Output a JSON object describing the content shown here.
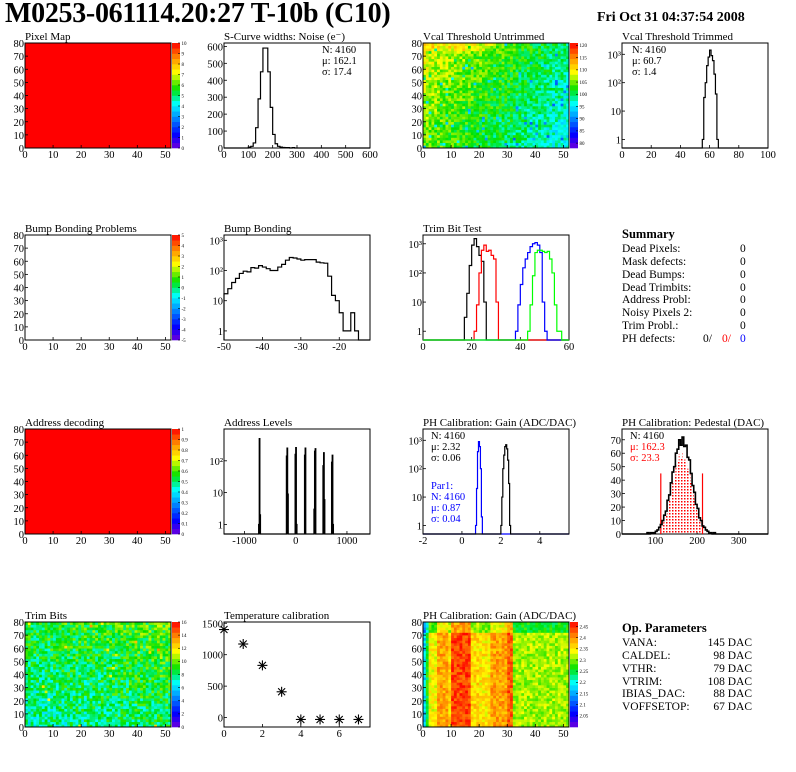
{
  "header": {
    "title": "M0253-061114.20:27 T-10b (C10)",
    "date": "Fri Oct 31 04:37:54 2008"
  },
  "summary": {
    "title": "Summary",
    "rows": [
      {
        "label": "Dead Pixels:",
        "value": "0"
      },
      {
        "label": "Mask defects:",
        "value": "0"
      },
      {
        "label": "Dead Bumps:",
        "value": "0"
      },
      {
        "label": "Dead Trimbits:",
        "value": "0"
      },
      {
        "label": "Address Probl:",
        "value": "0"
      },
      {
        "label": "Noisy Pixels 2:",
        "value": "0"
      },
      {
        "label": "Trim Probl.:",
        "value": "0"
      }
    ],
    "ph_defects": {
      "label": "PH defects:",
      "values": [
        "0/",
        "0/",
        "0"
      ],
      "colors": [
        "#000000",
        "#ff0000",
        "#0000ff"
      ]
    }
  },
  "op_parameters": {
    "title": "Op. Parameters",
    "rows": [
      {
        "label": "VANA:",
        "value": "145 DAC"
      },
      {
        "label": "CALDEL:",
        "value": "98 DAC"
      },
      {
        "label": "VTHR:",
        "value": "79 DAC"
      },
      {
        "label": "VTRIM:",
        "value": "108 DAC"
      },
      {
        "label": "IBIAS_DAC:",
        "value": "88 DAC"
      },
      {
        "label": "VOFFSETOP:",
        "value": "67 DAC"
      }
    ]
  },
  "chart_data": [
    {
      "type": "heatmap",
      "title": "Pixel Map",
      "xlim": [
        0,
        52
      ],
      "ylim": [
        0,
        80
      ],
      "xticks": [
        0,
        10,
        20,
        30,
        40,
        50
      ],
      "yticks": [
        0,
        10,
        20,
        30,
        40,
        50,
        60,
        70,
        80
      ],
      "zlim": [
        0,
        10
      ],
      "zticks": [
        "0",
        "1",
        "2",
        "3",
        "4",
        "5",
        "6",
        "7",
        "8",
        "9",
        "10"
      ],
      "uniform_value": 10
    },
    {
      "type": "histogram",
      "title": "S-Curve widths: Noise (e⁻)",
      "xlim": [
        0,
        600
      ],
      "ylim": [
        0,
        620
      ],
      "log": false,
      "xticks": [
        0,
        100,
        200,
        300,
        400,
        500,
        600
      ],
      "yticks": [
        0,
        100,
        200,
        300,
        400,
        500,
        600
      ],
      "yticklabels": [
        "0",
        "100",
        "200",
        "300",
        "400",
        "500",
        "600"
      ],
      "series": [
        {
          "color": "#000000",
          "x0": 100,
          "width": 10,
          "values": [
            5,
            10,
            30,
            120,
            290,
            450,
            590,
            590,
            450,
            240,
            80,
            25,
            10,
            5,
            3,
            2,
            2,
            0,
            2
          ]
        }
      ],
      "stats": [
        [
          {
            "text": "N: 4160",
            "color": "#000000"
          },
          {
            "text": "μ: 162.1",
            "color": "#000000"
          },
          {
            "text": "σ: 17.4",
            "color": "#000000"
          }
        ]
      ]
    },
    {
      "type": "heatmap",
      "title": "Vcal Threshold Untrimmed",
      "xlim": [
        0,
        52
      ],
      "ylim": [
        0,
        80
      ],
      "xticks": [
        0,
        10,
        20,
        30,
        40,
        50
      ],
      "yticks": [
        0,
        10,
        20,
        30,
        40,
        50,
        60,
        70,
        80
      ],
      "zlim": [
        78,
        121
      ],
      "zticks": [
        "80",
        "85",
        "90",
        "95",
        "100",
        "105",
        "110",
        "115",
        "120"
      ]
    },
    {
      "type": "histogram",
      "title": "Vcal Threshold Trimmed",
      "xlim": [
        0,
        100
      ],
      "ylim": [
        0.5,
        2500
      ],
      "log": true,
      "xticks": [
        0,
        20,
        40,
        60,
        80,
        100
      ],
      "yticks": [
        1,
        10,
        100,
        1000
      ],
      "yticklabels": [
        "1",
        "10",
        "10²",
        "10³"
      ],
      "series": [
        {
          "color": "#000000",
          "x0": 55,
          "width": 1,
          "values": [
            1,
            30,
            100,
            400,
            800,
            1400,
            900,
            600,
            200,
            40,
            1
          ]
        }
      ],
      "stats": [
        [
          {
            "text": "N: 4160",
            "color": "#000000"
          },
          {
            "text": "μ: 60.7",
            "color": "#000000"
          },
          {
            "text": "σ:  1.4",
            "color": "#000000"
          }
        ]
      ]
    },
    {
      "type": "heatmap",
      "title": "Bump Bonding Problems",
      "xlim": [
        0,
        52
      ],
      "ylim": [
        0,
        80
      ],
      "xticks": [
        0,
        10,
        20,
        30,
        40,
        50
      ],
      "yticks": [
        0,
        10,
        20,
        30,
        40,
        50,
        60,
        70,
        80
      ],
      "zlim": [
        -5,
        5
      ],
      "zticks": [
        "-5",
        "-4",
        "-3",
        "-2",
        "-1",
        "0",
        "1",
        "2",
        "3",
        "4",
        "5"
      ],
      "empty": true
    },
    {
      "type": "histogram",
      "title": "Bump Bonding",
      "xlim": [
        -50,
        -12
      ],
      "ylim": [
        0.5,
        1500
      ],
      "log": true,
      "xticks": [
        -50,
        -40,
        -30,
        -20
      ],
      "yticks": [
        1,
        10,
        100,
        1000
      ],
      "yticklabels": [
        "1",
        "10",
        "10²",
        "10³"
      ],
      "series": [
        {
          "color": "#000000",
          "x0": -50,
          "width": 1,
          "values": [
            17,
            25,
            40,
            55,
            80,
            95,
            90,
            125,
            120,
            145,
            130,
            115,
            100,
            100,
            130,
            160,
            220,
            270,
            260,
            240,
            220,
            230,
            230,
            230,
            190,
            180,
            175,
            65,
            15,
            10,
            4,
            1,
            1,
            4,
            1
          ]
        }
      ]
    },
    {
      "type": "histogram",
      "title": "Trim Bit Test",
      "xlim": [
        0,
        60
      ],
      "ylim": [
        0.5,
        2000
      ],
      "log": true,
      "xticks": [
        0,
        20,
        40,
        60
      ],
      "yticks": [
        1,
        10,
        100,
        1000
      ],
      "yticklabels": [
        "1",
        "10",
        "10²",
        "10³"
      ],
      "series": [
        {
          "color": "#000000",
          "x0": 17,
          "width": 1,
          "values": [
            3,
            20,
            180,
            900,
            1500,
            800,
            400,
            250,
            10
          ]
        },
        {
          "color": "#ff0000",
          "x0": 21,
          "width": 1,
          "values": [
            1,
            8,
            100,
            600,
            900,
            550,
            600,
            400,
            300,
            10
          ]
        },
        {
          "color": "#0000ff",
          "x0": 38,
          "width": 1,
          "values": [
            1,
            8,
            40,
            150,
            300,
            500,
            800,
            1000,
            1100,
            900,
            500,
            10,
            1
          ]
        },
        {
          "color": "#00ff00",
          "x0": 43,
          "width": 1,
          "values": [
            1,
            8,
            80,
            500,
            600,
            600,
            550,
            500,
            550,
            300,
            100,
            8,
            1,
            1
          ]
        }
      ]
    },
    {
      "type": "heatmap",
      "title": "Address decoding",
      "xlim": [
        0,
        52
      ],
      "ylim": [
        0,
        80
      ],
      "xticks": [
        0,
        10,
        20,
        30,
        40,
        50
      ],
      "yticks": [
        0,
        10,
        20,
        30,
        40,
        50,
        60,
        70,
        80
      ],
      "zlim": [
        0,
        1
      ],
      "zticks": [
        "0",
        "0.1",
        "0.2",
        "0.3",
        "0.4",
        "0.5",
        "0.6",
        "0.7",
        "0.8",
        "0.9",
        "1"
      ],
      "uniform_value": 1
    },
    {
      "type": "histogram",
      "title": "Address Levels",
      "xlim": [
        -1400,
        1450
      ],
      "ylim": [
        0.5,
        1000
      ],
      "log": true,
      "xticks": [
        -1000,
        0,
        1000
      ],
      "yticks": [
        1,
        10,
        100
      ],
      "yticklabels": [
        "1",
        "10",
        "10²"
      ],
      "series": [
        {
          "color": "#000000",
          "width": 12,
          "points": [
            [
              -724,
              1
            ],
            [
              -712,
              500
            ],
            [
              -700,
              2
            ],
            [
              -182,
              140
            ],
            [
              -170,
              250
            ],
            [
              -158,
              9
            ],
            [
              -12,
              160
            ],
            [
              0,
              260
            ],
            [
              12,
              1
            ],
            [
              172,
              150
            ],
            [
              184,
              250
            ],
            [
              356,
              3
            ],
            [
              368,
              200
            ],
            [
              380,
              240
            ],
            [
              532,
              70
            ],
            [
              544,
              180
            ],
            [
              556,
              6
            ],
            [
              700,
              90
            ],
            [
              712,
              150
            ],
            [
              724,
              1
            ]
          ]
        }
      ]
    },
    {
      "type": "histogram",
      "title": "PH Calibration: Gain (ADC/DAC)",
      "xlim": [
        -2,
        5.5
      ],
      "ylim": [
        0.5,
        2500
      ],
      "log": true,
      "xticks": [
        -2,
        0,
        2,
        4
      ],
      "yticks": [
        1,
        10,
        100,
        1000
      ],
      "yticklabels": [
        "1",
        "10",
        "10²",
        "10³"
      ],
      "series": [
        {
          "color": "#0000ff",
          "x0": 0.7,
          "width": 0.05,
          "values": [
            1,
            20,
            400,
            900,
            600,
            100,
            2
          ]
        },
        {
          "color": "#000000",
          "x0": 2.0,
          "width": 0.05,
          "values": [
            1,
            10,
            100,
            300,
            600,
            700,
            500,
            200,
            30,
            1
          ]
        }
      ],
      "stats": [
        [
          {
            "text": "N: 4160",
            "color": "#000000"
          },
          {
            "text": "μ: 2.32",
            "color": "#000000"
          },
          {
            "text": "σ: 0.06",
            "color": "#000000"
          }
        ],
        [
          {
            "text": "Par1:",
            "color": "#0000ff"
          },
          {
            "text": "N: 4160",
            "color": "#0000ff"
          },
          {
            "text": "μ: 0.87",
            "color": "#0000ff"
          },
          {
            "text": "σ: 0.04",
            "color": "#0000ff"
          }
        ]
      ]
    },
    {
      "type": "histogram",
      "title": "PH Calibration: Pedestal (DAC)",
      "xlim": [
        20,
        370
      ],
      "ylim": [
        0,
        78
      ],
      "log": false,
      "xticks": [
        100,
        200,
        300
      ],
      "yticks": [
        0,
        10,
        20,
        30,
        40,
        50,
        60,
        70
      ],
      "yticklabels": [
        "0",
        "10",
        "20",
        "30",
        "40",
        "50",
        "60",
        "70"
      ],
      "series": [
        {
          "color": "#000000",
          "x0": 80,
          "width": 4,
          "values": [
            1,
            0,
            1,
            1,
            1,
            2,
            3,
            5,
            7,
            10,
            14,
            17,
            25,
            29,
            38,
            46,
            50,
            60,
            63,
            70,
            66,
            72,
            65,
            66,
            57,
            55,
            45,
            36,
            31,
            22,
            19,
            12,
            10,
            6,
            5,
            3,
            2,
            1,
            1,
            0,
            1
          ]
        }
      ],
      "highlight": {
        "color": "#ff0000",
        "range": [
          113,
          213
        ],
        "cut_height": 45
      },
      "stats": [
        [
          {
            "text": "N: 4160",
            "color": "#000000"
          },
          {
            "text": "μ: 162.3",
            "color": "#ff0000"
          },
          {
            "text": "σ: 23.3",
            "color": "#ff0000"
          }
        ]
      ]
    },
    {
      "type": "heatmap",
      "title": "Trim Bits",
      "xlim": [
        0,
        52
      ],
      "ylim": [
        0,
        80
      ],
      "xticks": [
        0,
        10,
        20,
        30,
        40,
        50
      ],
      "yticks": [
        0,
        10,
        20,
        30,
        40,
        50,
        60,
        70,
        80
      ],
      "zlim": [
        0,
        16
      ],
      "zticks": [
        "0",
        "2",
        "4",
        "6",
        "8",
        "10",
        "12",
        "14",
        "16"
      ]
    },
    {
      "type": "scatter",
      "title": "Temperature calibration",
      "xlim": [
        0,
        7.6
      ],
      "ylim": [
        -150,
        1520
      ],
      "log": false,
      "xticks": [
        0,
        2,
        4,
        6
      ],
      "yticks": [
        0,
        500,
        1000,
        1500
      ],
      "yticklabels": [
        "0",
        "500",
        "1000",
        "1500"
      ],
      "points": [
        [
          0,
          1400
        ],
        [
          1,
          1170
        ],
        [
          2,
          830
        ],
        [
          3,
          410
        ],
        [
          4,
          -30
        ],
        [
          5,
          -30
        ],
        [
          6,
          -30
        ],
        [
          7,
          -30
        ]
      ],
      "marker": "asterisk"
    },
    {
      "type": "heatmap",
      "title": "PH Calibration: Gain (ADC/DAC)",
      "xlim": [
        0,
        52
      ],
      "ylim": [
        0,
        80
      ],
      "xticks": [
        0,
        10,
        20,
        30,
        40,
        50
      ],
      "yticks": [
        0,
        10,
        20,
        30,
        40,
        50,
        60,
        70,
        80
      ],
      "zlim": [
        2.0,
        2.47
      ],
      "zticks": [
        "2.05",
        "2.1",
        "2.15",
        "2.2",
        "2.25",
        "2.3",
        "2.35",
        "2.4",
        "2.45"
      ]
    }
  ]
}
